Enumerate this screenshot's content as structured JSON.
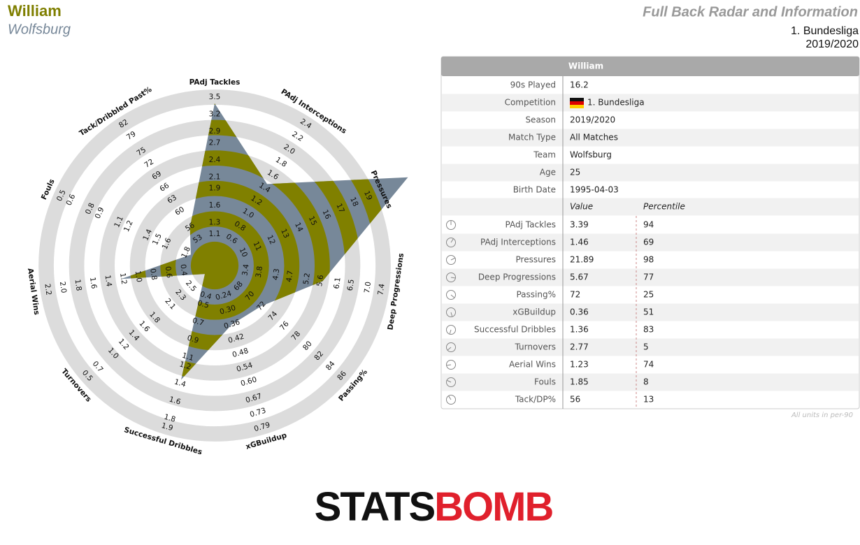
{
  "header": {
    "name": "William",
    "team": "Wolfsburg",
    "title": "Full Back Radar and Information",
    "league": "1. Bundesliga",
    "season": "2019/2020"
  },
  "chart_data": {
    "type": "radar",
    "categories": [
      "PAdj Tackles",
      "PAdj Interceptions",
      "Pressures",
      "Deep Progressions",
      "Passing%",
      "xGBuildup",
      "Successful Dribbles",
      "Turnovers",
      "Aerial Wins",
      "Fouls",
      "Tack/Dribbled Past%"
    ],
    "ticks": [
      [
        1.1,
        1.3,
        1.6,
        1.9,
        2.1,
        2.4,
        2.7,
        2.9,
        3.2,
        3.5
      ],
      [
        0.6,
        0.8,
        {
          "value": 1,
          "label": "1.0"
        },
        1.2,
        1.4,
        1.6,
        1.8,
        {
          "value": 2,
          "label": "2.0"
        },
        2.2,
        2.4
      ],
      [
        10,
        11,
        12,
        13,
        14,
        15,
        16,
        17,
        18,
        19
      ],
      [
        3.4,
        3.8,
        4.3,
        4.7,
        5.2,
        5.6,
        6.1,
        6.5,
        {
          "value": 7,
          "label": "7.0"
        },
        7.4
      ],
      [
        68,
        70,
        72,
        74,
        76,
        78,
        80,
        82,
        84,
        86
      ],
      [
        0.24,
        {
          "value": 0.3,
          "label": "0.30"
        },
        0.36,
        0.42,
        0.48,
        0.54,
        {
          "value": 0.6,
          "label": "0.60"
        },
        0.67,
        0.73,
        0.79
      ],
      [
        0.4,
        0.5,
        0.7,
        0.9,
        1.1,
        1.2,
        1.4,
        1.6,
        1.8,
        1.9
      ],
      [
        2.5,
        2.3,
        2.1,
        1.8,
        1.6,
        1.4,
        1.2,
        {
          "value": 1,
          "label": "1.0"
        },
        0.7,
        0.5
      ],
      [
        0.4,
        0.6,
        0.8,
        {
          "value": 1,
          "label": "1.0"
        },
        1.2,
        1.4,
        1.6,
        1.8,
        {
          "value": 2,
          "label": "2.0"
        },
        2.2
      ],
      [
        1.8,
        1.6,
        1.5,
        1.4,
        1.2,
        1.1,
        0.9,
        0.8,
        0.6,
        0.5
      ],
      [
        53,
        56,
        60,
        63,
        66,
        69,
        72,
        75,
        79,
        82
      ]
    ],
    "values": [
      3.39,
      1.46,
      21.89,
      5.67,
      72,
      0.36,
      1.36,
      2.77,
      1.23,
      1.85,
      56
    ],
    "color": "#778899",
    "band_color": "#808000",
    "ring_color": "#dcdcdc"
  },
  "table": {
    "title": "William",
    "info": [
      {
        "label": "90s Played",
        "value": "16.2"
      },
      {
        "label": "Competition",
        "value": "1. Bundesliga"
      },
      {
        "label": "Season",
        "value": "2019/2020"
      },
      {
        "label": "Match Type",
        "value": "All Matches"
      },
      {
        "label": "Team",
        "value": "Wolfsburg"
      },
      {
        "label": "Age",
        "value": "25"
      },
      {
        "label": "Birth Date",
        "value": "1995-04-03"
      }
    ],
    "columns": [
      "Value",
      "Percentile"
    ],
    "stats": [
      {
        "label": "PAdj Tackles",
        "percentile": 94,
        "color": "#8b1a1a"
      },
      {
        "label": "PAdj Interceptions",
        "percentile": 69,
        "color": "#c47a1c"
      },
      {
        "label": "Pressures",
        "percentile": 98,
        "color": "#7a1010"
      },
      {
        "label": "Deep Progressions",
        "percentile": 77,
        "color": "#b0461c"
      },
      {
        "label": "Passing%",
        "percentile": 25,
        "color": "#2c5c8c"
      },
      {
        "label": "xGBuildup",
        "percentile": 51,
        "color": "#b5c232"
      },
      {
        "label": "Successful Dribbles",
        "percentile": 83,
        "color": "#9c2c1a"
      },
      {
        "label": "Turnovers",
        "percentile": 5,
        "color": "#1c2a6c"
      },
      {
        "label": "Aerial Wins",
        "percentile": 74,
        "color": "#b8601c"
      },
      {
        "label": "Fouls",
        "percentile": 8,
        "color": "#1c2a6c"
      },
      {
        "label": "Tack/DP%",
        "percentile": 13,
        "color": "#1c3a6c"
      }
    ]
  },
  "footnote": "All units in per-90",
  "logo": [
    "STATS",
    "BOMB"
  ]
}
